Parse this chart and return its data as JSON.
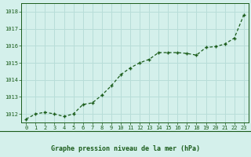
{
  "x": [
    0,
    1,
    2,
    3,
    4,
    5,
    6,
    7,
    8,
    9,
    10,
    11,
    12,
    13,
    14,
    15,
    16,
    17,
    18,
    19,
    20,
    21,
    22,
    23
  ],
  "y": [
    1011.7,
    1012.0,
    1012.1,
    1012.0,
    1011.85,
    1012.0,
    1012.55,
    1012.65,
    1013.1,
    1013.65,
    1014.3,
    1014.7,
    1015.0,
    1015.2,
    1015.6,
    1015.6,
    1015.6,
    1015.55,
    1015.45,
    1015.9,
    1015.95,
    1016.1,
    1016.45,
    1017.8
  ],
  "ylim": [
    1011.5,
    1018.5
  ],
  "yticks": [
    1012,
    1013,
    1014,
    1015,
    1016,
    1017,
    1018
  ],
  "line_color": "#1a5c1a",
  "marker_color": "#1a5c1a",
  "bg_color": "#d4f0eb",
  "grid_color": "#b8ddd8",
  "bottom_bg_color": "#d4f0eb",
  "xlabel": "Graphe pression niveau de la mer (hPa)",
  "xlabel_color": "#1a5c1a",
  "tick_color": "#1a5c1a",
  "separator_color": "#1a5c1a"
}
